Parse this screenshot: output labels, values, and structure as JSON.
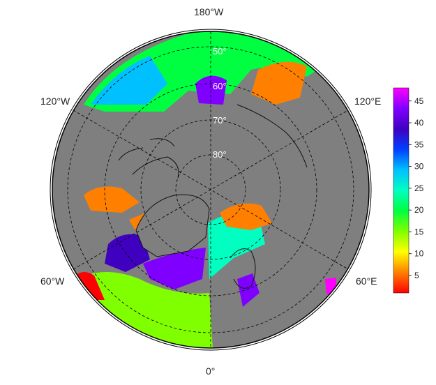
{
  "map": {
    "projection": "north polar stereographic",
    "ocean_fill": "#7f7f7f",
    "lon_labels": {
      "top": "180°W",
      "upper_left": "120°W",
      "upper_right": "120°E",
      "lower_left": "60°W",
      "lower_right": "60°E",
      "bottom": "0°"
    },
    "lat_labels": [
      "50°",
      "60°",
      "70°",
      "80°"
    ],
    "regions": [
      {
        "id": "bering-pacific",
        "level": 20
      },
      {
        "id": "okhotsk-kamchatka",
        "level": 5
      },
      {
        "id": "pacific-cold-spot",
        "level": 42
      },
      {
        "id": "gulf-of-alaska",
        "level": 28
      },
      {
        "id": "hudson-bay",
        "level": 4
      },
      {
        "id": "baffin-labrador",
        "level": 38
      },
      {
        "id": "irminger-sea",
        "level": 43
      },
      {
        "id": "north-atlantic",
        "level": 17
      },
      {
        "id": "norwegian-barents",
        "level": 26
      },
      {
        "id": "kara-sea",
        "level": 5
      },
      {
        "id": "us-east-coast",
        "level": 3
      },
      {
        "id": "baltic",
        "level": 44
      },
      {
        "id": "mediterranean-east",
        "level": 46
      }
    ]
  },
  "colorbar": {
    "min": 1,
    "max": 48,
    "ticks": [
      "5",
      "10",
      "15",
      "20",
      "25",
      "30",
      "35",
      "40",
      "45"
    ],
    "stops": [
      "#ff0000",
      "#ff8000",
      "#ffff00",
      "#80ff00",
      "#00ff40",
      "#00ffc0",
      "#00c0ff",
      "#0040ff",
      "#4000c0",
      "#8000ff",
      "#ff00ff"
    ]
  }
}
